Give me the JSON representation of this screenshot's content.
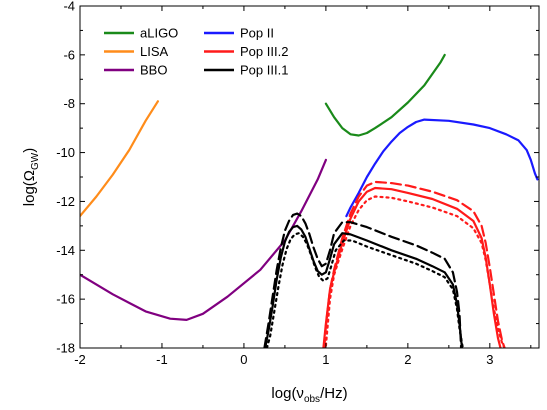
{
  "chart_data": {
    "type": "line",
    "xlabel": {
      "main": "log(ν",
      "sub": "obs",
      "tail": "/Hz)"
    },
    "ylabel": {
      "main": "log(Ω",
      "sub": "GW",
      "tail": ")"
    },
    "xlim": [
      -2,
      3.6
    ],
    "ylim": [
      -18,
      -4
    ],
    "xticks": [
      -2,
      -1,
      0,
      1,
      2,
      3
    ],
    "yticks": [
      -18,
      -16,
      -14,
      -12,
      -10,
      -8,
      -6,
      -4
    ],
    "grid": false,
    "legend_position": "top-left",
    "legend_order": [
      "aLIGO",
      "LISA",
      "BBO",
      "Pop II",
      "Pop III.2",
      "Pop III.1"
    ],
    "series": [
      {
        "name": "aLIGO",
        "color": "#1a8a1a",
        "style": "solid",
        "x": [
          1.0,
          1.1,
          1.2,
          1.3,
          1.4,
          1.5,
          1.6,
          1.8,
          2.0,
          2.2,
          2.4,
          2.45
        ],
        "y": [
          -8.0,
          -8.55,
          -9.0,
          -9.25,
          -9.3,
          -9.2,
          -9.0,
          -8.55,
          -7.95,
          -7.25,
          -6.3,
          -6.0
        ]
      },
      {
        "name": "LISA",
        "color": "#ff8c1a",
        "style": "solid",
        "x": [
          -2.0,
          -1.8,
          -1.6,
          -1.4,
          -1.2,
          -1.05
        ],
        "y": [
          -12.6,
          -11.8,
          -10.9,
          -9.9,
          -8.7,
          -7.9
        ]
      },
      {
        "name": "BBO",
        "color": "#800080",
        "style": "solid",
        "x": [
          -2.0,
          -1.6,
          -1.2,
          -0.9,
          -0.7,
          -0.5,
          -0.2,
          0.2,
          0.5,
          0.7,
          0.9,
          1.0
        ],
        "y": [
          -15.0,
          -15.8,
          -16.5,
          -16.8,
          -16.85,
          -16.6,
          -15.9,
          -14.8,
          -13.6,
          -12.4,
          -11.1,
          -10.3
        ]
      },
      {
        "name": "Pop II",
        "color": "#1a1aff",
        "style": "solid",
        "x": [
          1.25,
          1.3,
          1.4,
          1.5,
          1.6,
          1.7,
          1.8,
          1.9,
          2.0,
          2.1,
          2.2,
          2.5,
          2.8,
          3.0,
          3.2,
          3.35,
          3.45,
          3.5,
          3.55,
          3.58
        ],
        "y": [
          -12.6,
          -12.25,
          -11.65,
          -11.0,
          -10.45,
          -9.95,
          -9.55,
          -9.2,
          -8.95,
          -8.75,
          -8.65,
          -8.7,
          -8.85,
          -9.0,
          -9.25,
          -9.5,
          -9.9,
          -10.3,
          -10.85,
          -11.1
        ]
      }
    ],
    "model_groups": [
      {
        "name": "Pop III.2",
        "color": "#ff1a1a",
        "variants": [
          {
            "style": "solid",
            "x": [
              0.97,
              1.0,
              1.05,
              1.1,
              1.2,
              1.3,
              1.4,
              1.5,
              1.6,
              1.8,
              2.0,
              2.3,
              2.6,
              2.8,
              2.9,
              2.95,
              3.0,
              3.05,
              3.1,
              3.13
            ],
            "y": [
              -18.0,
              -17.0,
              -15.6,
              -14.9,
              -13.7,
              -12.7,
              -12.0,
              -11.6,
              -11.45,
              -11.5,
              -11.65,
              -11.9,
              -12.3,
              -12.8,
              -13.5,
              -14.3,
              -15.4,
              -16.6,
              -17.6,
              -18.0
            ]
          },
          {
            "style": "dashed",
            "x": [
              0.98,
              1.0,
              1.05,
              1.1,
              1.2,
              1.3,
              1.4,
              1.5,
              1.6,
              1.8,
              2.0,
              2.3,
              2.6,
              2.8,
              2.9,
              2.95,
              3.0,
              3.05,
              3.1,
              3.15,
              3.18
            ],
            "y": [
              -18.0,
              -17.1,
              -15.6,
              -14.8,
              -13.5,
              -12.5,
              -11.8,
              -11.35,
              -11.2,
              -11.25,
              -11.35,
              -11.6,
              -11.95,
              -12.4,
              -13.0,
              -13.7,
              -14.7,
              -15.8,
              -16.9,
              -17.7,
              -18.0
            ]
          },
          {
            "style": "dotted",
            "x": [
              1.0,
              1.05,
              1.1,
              1.2,
              1.3,
              1.4,
              1.5,
              1.6,
              1.8,
              2.0,
              2.3,
              2.6,
              2.8,
              2.9,
              2.95,
              3.0,
              3.05,
              3.1,
              3.15,
              3.18
            ],
            "y": [
              -17.9,
              -16.0,
              -15.0,
              -13.95,
              -13.0,
              -12.35,
              -11.95,
              -11.8,
              -11.85,
              -12.0,
              -12.25,
              -12.6,
              -13.1,
              -13.7,
              -14.4,
              -15.4,
              -16.4,
              -17.2,
              -17.8,
              -18.0
            ]
          }
        ]
      },
      {
        "name": "Pop III.1",
        "color": "#000000",
        "variants": [
          {
            "style": "solid",
            "x": [
              0.26,
              0.3,
              0.35,
              0.4,
              0.45,
              0.5,
              0.55,
              0.6,
              0.65,
              0.7,
              0.75,
              0.8,
              0.85,
              0.9,
              0.95,
              1.0,
              1.05,
              1.1,
              1.2,
              1.3,
              1.5,
              1.8,
              2.1,
              2.3,
              2.45,
              2.55,
              2.6,
              2.63,
              2.66
            ],
            "y": [
              -18.0,
              -17.3,
              -16.3,
              -15.2,
              -14.3,
              -13.65,
              -13.25,
              -13.05,
              -13.0,
              -13.15,
              -13.45,
              -13.95,
              -14.45,
              -14.85,
              -15.0,
              -14.9,
              -14.35,
              -13.75,
              -13.3,
              -13.35,
              -13.6,
              -14.0,
              -14.35,
              -14.65,
              -14.9,
              -15.4,
              -16.2,
              -17.0,
              -18.0
            ]
          },
          {
            "style": "dashed",
            "x": [
              0.25,
              0.3,
              0.35,
              0.4,
              0.45,
              0.5,
              0.55,
              0.6,
              0.65,
              0.7,
              0.75,
              0.8,
              0.85,
              0.9,
              0.95,
              1.0,
              1.05,
              1.1,
              1.2,
              1.3,
              1.5,
              1.8,
              2.1,
              2.3,
              2.45,
              2.55,
              2.6,
              2.63,
              2.65
            ],
            "y": [
              -18.0,
              -17.0,
              -15.9,
              -14.8,
              -13.9,
              -13.2,
              -12.8,
              -12.55,
              -12.5,
              -12.6,
              -12.9,
              -13.35,
              -13.9,
              -14.35,
              -14.65,
              -14.55,
              -14.0,
              -13.3,
              -12.85,
              -12.85,
              -13.05,
              -13.45,
              -13.8,
              -14.1,
              -14.35,
              -14.9,
              -15.7,
              -16.6,
              -18.0
            ]
          },
          {
            "style": "dotted",
            "x": [
              0.28,
              0.32,
              0.37,
              0.42,
              0.47,
              0.52,
              0.57,
              0.62,
              0.67,
              0.72,
              0.77,
              0.82,
              0.87,
              0.92,
              0.97,
              1.02,
              1.07,
              1.12,
              1.22,
              1.32,
              1.5,
              1.8,
              2.1,
              2.3,
              2.45,
              2.55,
              2.6,
              2.63,
              2.67
            ],
            "y": [
              -18.0,
              -17.5,
              -16.5,
              -15.5,
              -14.6,
              -13.95,
              -13.55,
              -13.35,
              -13.3,
              -13.45,
              -13.75,
              -14.2,
              -14.7,
              -15.1,
              -15.25,
              -15.15,
              -14.6,
              -14.0,
              -13.6,
              -13.6,
              -13.85,
              -14.2,
              -14.55,
              -14.85,
              -15.1,
              -15.6,
              -16.4,
              -17.2,
              -18.0
            ]
          }
        ]
      }
    ]
  }
}
